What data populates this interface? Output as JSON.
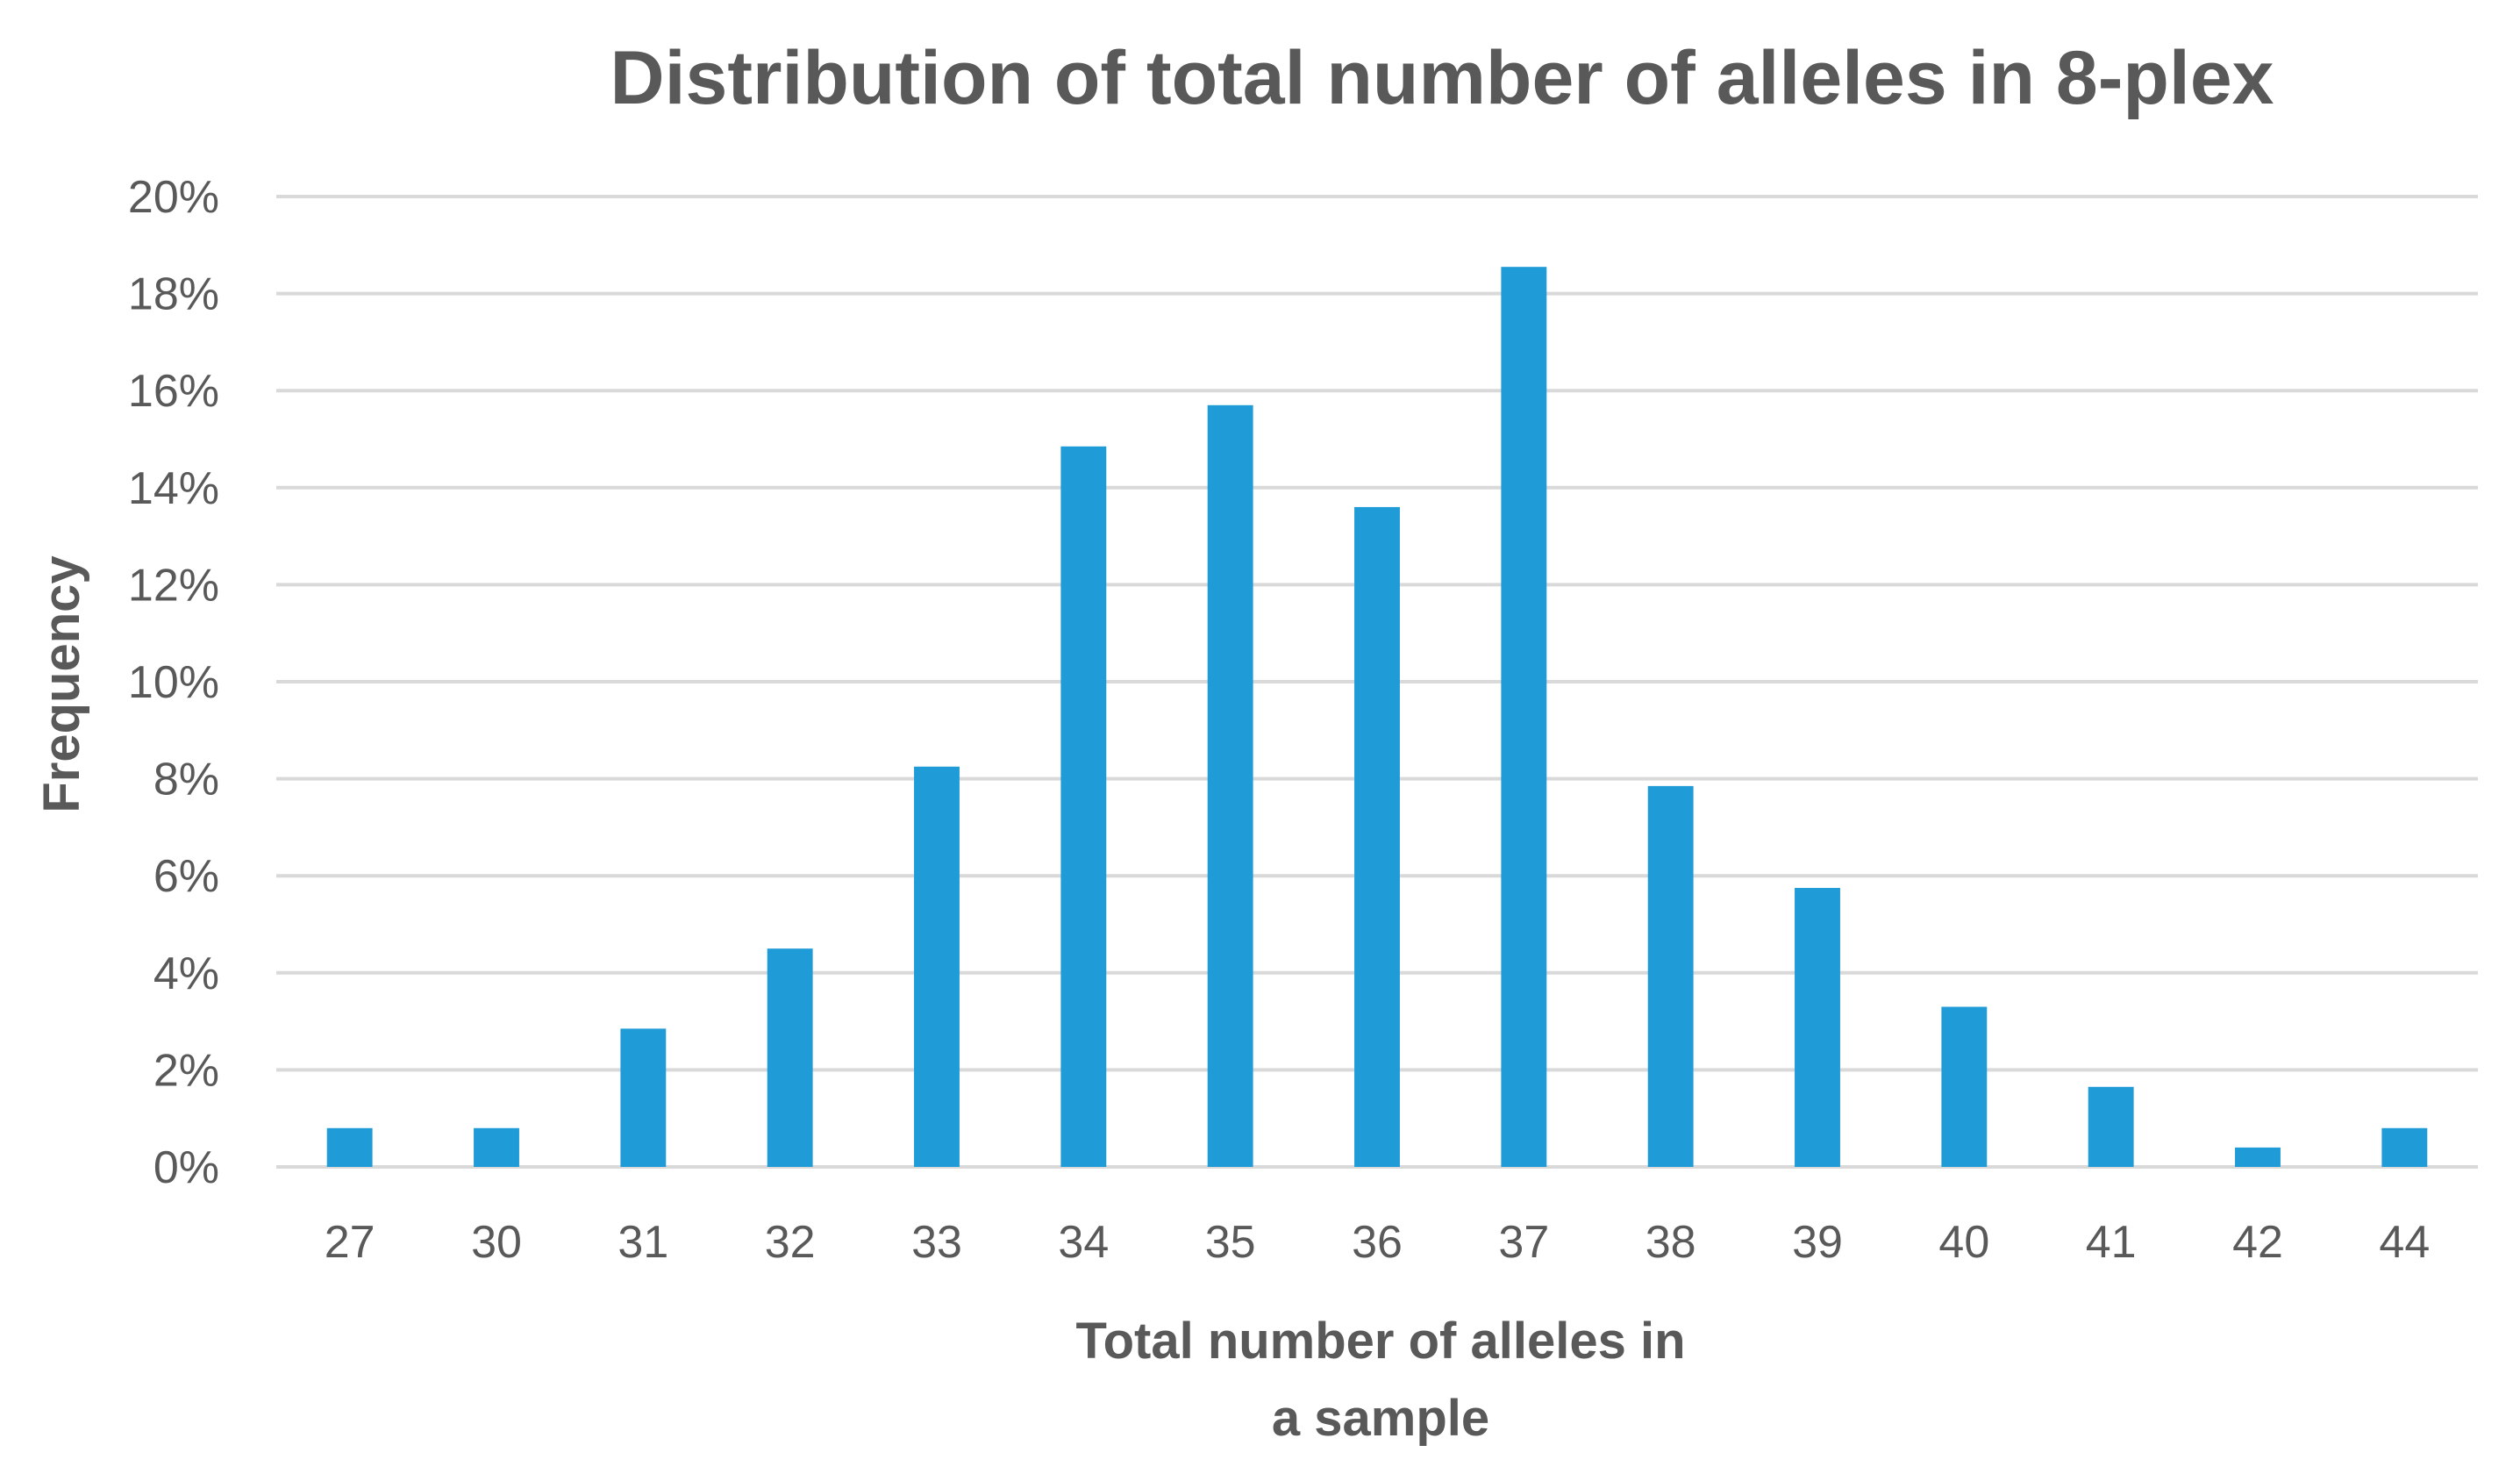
{
  "chart_data": {
    "type": "bar",
    "title": "Distribution of total number of alleles in 8-plex",
    "xlabel_lines": [
      "Total number of alleles in",
      "a sample"
    ],
    "ylabel": "Frequency",
    "categories": [
      "27",
      "30",
      "31",
      "32",
      "33",
      "34",
      "35",
      "36",
      "37",
      "38",
      "39",
      "40",
      "41",
      "42",
      "44"
    ],
    "values": [
      0.8,
      0.8,
      2.85,
      4.5,
      8.25,
      14.85,
      15.7,
      13.6,
      18.55,
      7.85,
      5.75,
      3.3,
      1.65,
      0.4,
      0.8
    ],
    "value_unit": "%",
    "ylim": [
      0,
      20
    ],
    "yticks": [
      "0%",
      "2%",
      "4%",
      "6%",
      "8%",
      "10%",
      "12%",
      "14%",
      "16%",
      "18%",
      "20%"
    ],
    "grid": true,
    "legend": "none",
    "bar_color": "#1f9bd7"
  }
}
